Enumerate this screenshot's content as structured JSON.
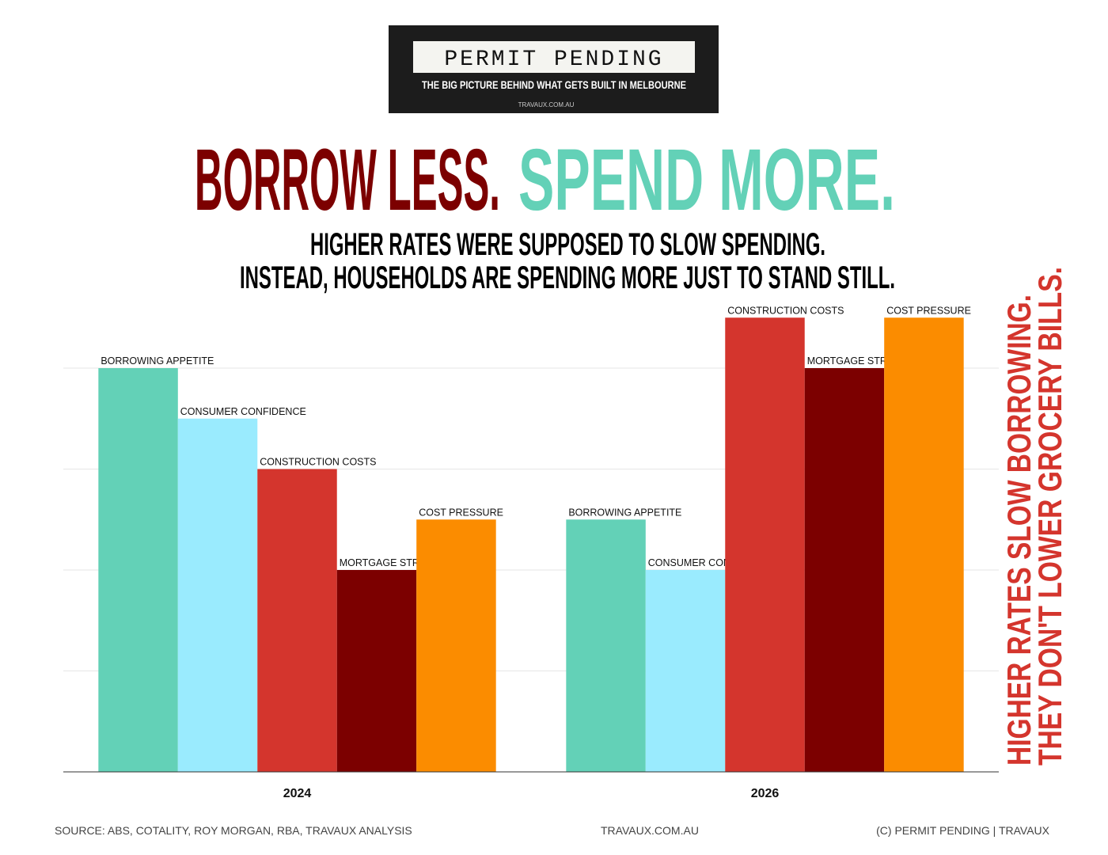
{
  "header": {
    "title": "PERMIT PENDING",
    "tagline": "THE BIG PICTURE BEHIND WHAT GETS BUILT IN MELBOURNE",
    "url": "TRAVAUX.COM.AU"
  },
  "chart_data": {
    "type": "bar",
    "title": [
      "BORROW LESS.",
      "SPEND MORE."
    ],
    "subtitle": [
      "HIGHER RATES WERE SUPPOSED TO SLOW SPENDING.",
      "INSTEAD, HOUSEHOLDS ARE SPENDING MORE JUST TO STAND STILL."
    ],
    "categories": [
      "2024",
      "2026"
    ],
    "series": [
      {
        "name": "BORROWING APPETITE",
        "color": "#63d1b7",
        "values": [
          4,
          2.5
        ]
      },
      {
        "name": "CONSUMER CONFIDENCE",
        "color": "#9aebfe",
        "values": [
          3.5,
          2
        ]
      },
      {
        "name": "CONSTRUCTION COSTS",
        "color": "#d4352d",
        "values": [
          3,
          4.5
        ]
      },
      {
        "name": "MORTGAGE STRESS",
        "color": "#7c0000",
        "values": [
          2,
          4
        ]
      },
      {
        "name": "COST PRESSURE",
        "color": "#fb8c00",
        "values": [
          2.5,
          4.5
        ]
      }
    ],
    "ylim": [
      0,
      5
    ],
    "yticks": [
      1,
      2,
      3,
      4
    ],
    "grid": true,
    "side_note": [
      "HIGHER RATES SLOW BORROWING.",
      "THEY DON'T LOWER GROCERY BILLS."
    ],
    "source": "SOURCE: ABS, COTALITY, ROY MORGAN, RBA, TRAVAUX ANALYSIS",
    "footer_url": "TRAVAUX.COM.AU",
    "copyright": "(C)  PERMIT PENDING | TRAVAUX"
  }
}
